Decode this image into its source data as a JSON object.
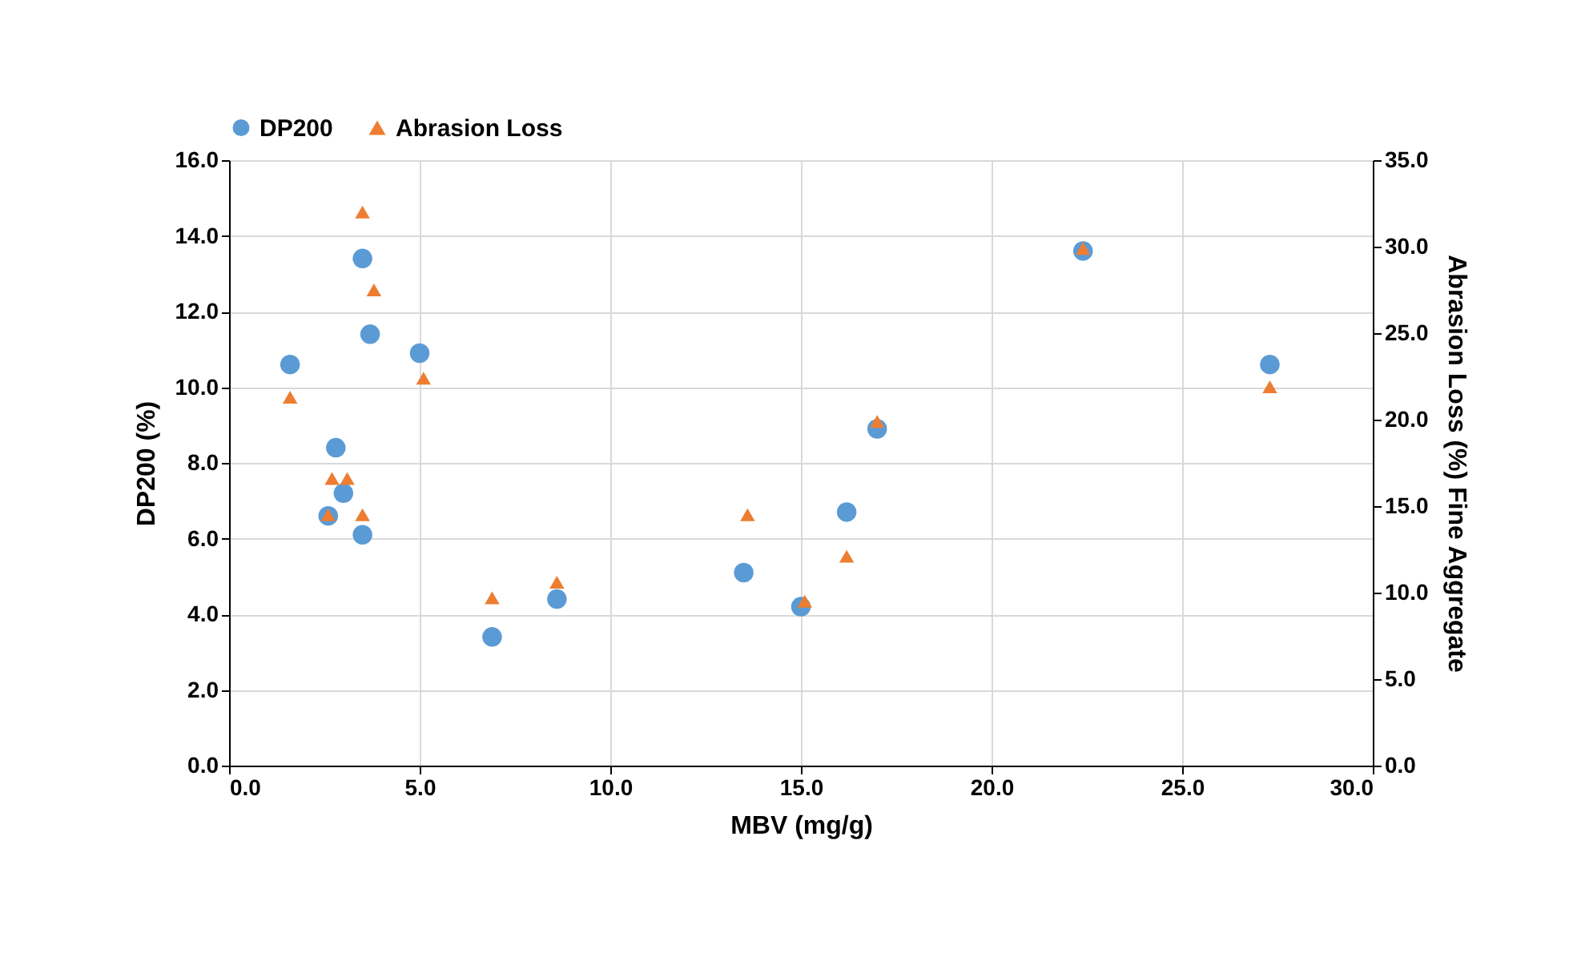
{
  "chart_data": {
    "type": "scatter",
    "xlabel": "MBV (mg/g)",
    "ylabel": "DP200 (%)",
    "y2label": "Abrasion Loss (%) Fine Aggregate",
    "xlim": [
      0,
      30
    ],
    "xticks": [
      {
        "value": 0,
        "label": "0.0"
      },
      {
        "value": 5,
        "label": "5.0"
      },
      {
        "value": 10,
        "label": "10.0"
      },
      {
        "value": 15,
        "label": "15.0"
      },
      {
        "value": 20,
        "label": "20.0"
      },
      {
        "value": 25,
        "label": "25.0"
      },
      {
        "value": 30,
        "label": "30.0"
      }
    ],
    "ylim": [
      0,
      16
    ],
    "yticks": [
      {
        "value": 0,
        "label": "0.0"
      },
      {
        "value": 2,
        "label": "2.0"
      },
      {
        "value": 4,
        "label": "4.0"
      },
      {
        "value": 6,
        "label": "6.0"
      },
      {
        "value": 8,
        "label": "8.0"
      },
      {
        "value": 10,
        "label": "10.0"
      },
      {
        "value": 12,
        "label": "12.0"
      },
      {
        "value": 14,
        "label": "14.0"
      },
      {
        "value": 16,
        "label": "16.0"
      }
    ],
    "y2lim": [
      0,
      35
    ],
    "y2ticks": [
      {
        "value": 0,
        "label": "0.0"
      },
      {
        "value": 5,
        "label": "5.0"
      },
      {
        "value": 10,
        "label": "10.0"
      },
      {
        "value": 15,
        "label": "15.0"
      },
      {
        "value": 20,
        "label": "20.0"
      },
      {
        "value": 25,
        "label": "25.0"
      },
      {
        "value": 30,
        "label": "30.0"
      },
      {
        "value": 35,
        "label": "35.0"
      }
    ],
    "grid": true,
    "legend": "top",
    "series": [
      {
        "name": "DP200",
        "color": "#5b9bd5",
        "marker": "circle",
        "x": [
          1.6,
          2.6,
          2.8,
          3.0,
          3.5,
          3.5,
          3.7,
          5.0,
          6.9,
          8.6,
          13.5,
          15.0,
          16.2,
          17.0,
          22.4,
          27.3
        ],
        "values": [
          10.6,
          6.6,
          8.4,
          7.2,
          6.1,
          13.4,
          11.4,
          10.9,
          3.4,
          4.4,
          5.1,
          4.2,
          6.7,
          8.9,
          13.6,
          10.6
        ]
      },
      {
        "name": "Abrasion Loss",
        "color": "#ed7d31",
        "marker": "triangle",
        "axis": "y2",
        "x": [
          1.6,
          2.6,
          2.7,
          3.1,
          3.5,
          3.5,
          3.8,
          5.1,
          6.9,
          8.6,
          13.6,
          15.1,
          16.2,
          17.0,
          22.4,
          27.3
        ],
        "values": [
          21.3,
          14.5,
          16.6,
          16.6,
          14.5,
          32.0,
          27.5,
          22.4,
          9.7,
          10.6,
          14.5,
          9.5,
          12.1,
          19.9,
          29.9,
          21.9
        ]
      }
    ]
  }
}
